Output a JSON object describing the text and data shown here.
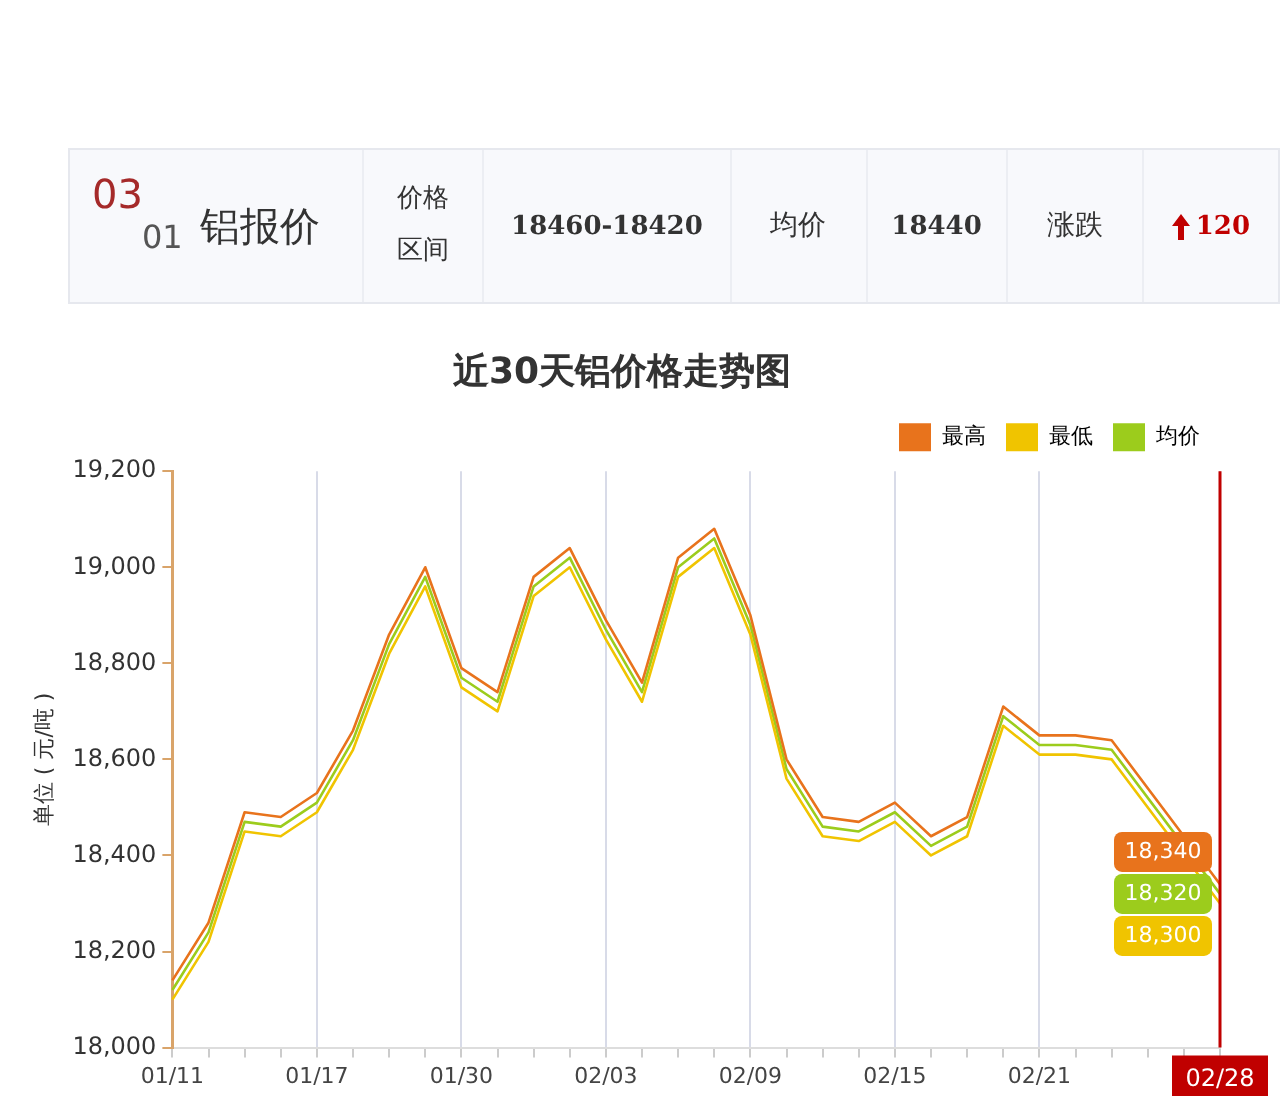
{
  "chart_data": [
    {
      "type": "other",
      "annotations": [
        "03",
        "01",
        "铝报价",
        "价格区间",
        "18460-18420",
        "均价",
        "18440",
        "涨跌",
        "120"
      ]
    },
    {
      "type": "line",
      "title": "近30天铝价格走势图",
      "ylabel": "单位 ( 元/吨 )",
      "categories": [
        "01/11",
        null,
        null,
        null,
        "01/17",
        null,
        null,
        null,
        "01/30",
        null,
        null,
        null,
        "02/03",
        null,
        null,
        null,
        "02/09",
        null,
        null,
        null,
        "02/15",
        null,
        null,
        null,
        "02/21",
        null,
        null,
        null,
        null,
        "02/28"
      ],
      "series": [
        {
          "name": "最高",
          "color": "#e8731c",
          "values": [
            18140,
            18260,
            18490,
            18480,
            18530,
            18660,
            18860,
            19000,
            18790,
            18740,
            18980,
            19040,
            18890,
            18760,
            19020,
            19080,
            18900,
            18600,
            18480,
            18470,
            18510,
            18440,
            18480,
            18710,
            18650,
            18650,
            18640,
            null,
            null,
            18340
          ],
          "value_labels": [
            null,
            null,
            null,
            null,
            null,
            null,
            null,
            null,
            null,
            null,
            null,
            null,
            null,
            null,
            null,
            null,
            null,
            null,
            null,
            null,
            null,
            null,
            null,
            null,
            null,
            null,
            null,
            null,
            null,
            "18,340"
          ]
        },
        {
          "name": "最低",
          "color": "#f0c400",
          "values": [
            18100,
            18220,
            18450,
            18440,
            18490,
            18620,
            18820,
            18960,
            18750,
            18700,
            18940,
            19000,
            18850,
            18720,
            18980,
            19040,
            18860,
            18560,
            18440,
            18430,
            18470,
            18400,
            18440,
            18670,
            18610,
            18610,
            18600,
            null,
            null,
            18300
          ],
          "value_labels": [
            null,
            null,
            null,
            null,
            null,
            null,
            null,
            null,
            null,
            null,
            null,
            null,
            null,
            null,
            null,
            null,
            null,
            null,
            null,
            null,
            null,
            null,
            null,
            null,
            null,
            null,
            null,
            null,
            null,
            "18,300"
          ]
        },
        {
          "name": "均价",
          "color": "#9ccc1c",
          "values": [
            18120,
            18240,
            18470,
            18460,
            18510,
            18640,
            18840,
            18980,
            18770,
            18720,
            18960,
            19020,
            18870,
            18740,
            19000,
            19060,
            18880,
            18580,
            18460,
            18450,
            18490,
            18420,
            18460,
            18690,
            18630,
            18630,
            18620,
            null,
            null,
            18320
          ],
          "value_labels": [
            null,
            null,
            null,
            null,
            null,
            null,
            null,
            null,
            null,
            null,
            null,
            null,
            null,
            null,
            null,
            null,
            null,
            null,
            null,
            null,
            null,
            null,
            null,
            null,
            null,
            null,
            null,
            null,
            null,
            "18,320"
          ]
        }
      ],
      "ylim": [
        18000,
        19200
      ],
      "yticks": [
        {
          "value": 18000,
          "label": "18,000"
        },
        {
          "value": 18200,
          "label": "18,200"
        },
        {
          "value": 18400,
          "label": "18,400"
        },
        {
          "value": 18600,
          "label": "18,600"
        },
        {
          "value": 18800,
          "label": "18,800"
        },
        {
          "value": 19000,
          "label": "19,000"
        },
        {
          "value": 19200,
          "label": "19,200"
        }
      ],
      "grid": "x",
      "legend": "top right",
      "marker": "none",
      "line_style": "solid",
      "ref_lines": [
        {
          "axis": "x",
          "value": "02/28",
          "color": "#c00000"
        }
      ]
    }
  ]
}
